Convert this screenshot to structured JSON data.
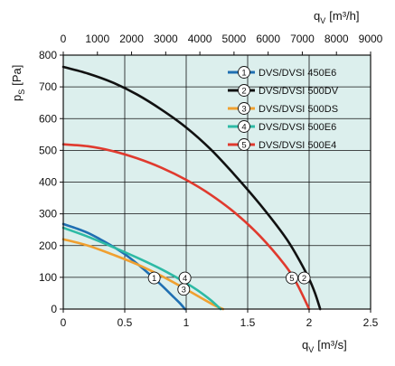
{
  "chart_data": {
    "type": "line",
    "title": "",
    "xlabel": "q",
    "xlabel_sub": "V",
    "xlabel_unit": "[m³/s]",
    "ylabel": "p",
    "ylabel_sub": "S",
    "ylabel_unit": "[Pa]",
    "top_xlabel": "q",
    "top_xlabel_sub": "V",
    "top_xlabel_unit": "[m³/h]",
    "xlim": [
      0,
      2.5
    ],
    "ylim": [
      0,
      800
    ],
    "top_xlim": [
      0,
      9000
    ],
    "x_ticks": [
      "0",
      "0.5",
      "1",
      "1.5",
      "2",
      "2.5"
    ],
    "x_tick_values": [
      0,
      0.5,
      1,
      1.5,
      2,
      2.5
    ],
    "y_ticks": [
      "0",
      "100",
      "200",
      "300",
      "400",
      "500",
      "600",
      "700",
      "800"
    ],
    "y_tick_values": [
      0,
      100,
      200,
      300,
      400,
      500,
      600,
      700,
      800
    ],
    "top_x_ticks": [
      "0",
      "1000",
      "2000",
      "3000",
      "4000",
      "5000",
      "6000",
      "7000",
      "8000",
      "9000"
    ],
    "top_x_tick_values": [
      0,
      1000,
      2000,
      3000,
      4000,
      5000,
      6000,
      7000,
      8000,
      9000
    ],
    "grid": true,
    "plot_background": "#dcefed",
    "grid_color": "#111111",
    "legend_position": "top-right",
    "series": [
      {
        "name": "DVS/DVSI 450E6",
        "number": "1",
        "color": "#1f6fb2",
        "x": [
          0,
          0.1,
          0.2,
          0.3,
          0.4,
          0.5,
          0.6,
          0.7,
          0.8,
          0.9,
          0.95,
          0.99
        ],
        "y": [
          268,
          255,
          240,
          220,
          198,
          173,
          143,
          110,
          75,
          37,
          18,
          0
        ],
        "label_point": [
          0.74,
          98
        ]
      },
      {
        "name": "DVS/DVSI 500DV",
        "number": "2",
        "color": "#111111",
        "x": [
          0,
          0.2,
          0.4,
          0.6,
          0.8,
          1.0,
          1.2,
          1.4,
          1.6,
          1.8,
          1.9,
          2.0,
          2.05,
          2.09
        ],
        "y": [
          763,
          742,
          714,
          676,
          628,
          572,
          503,
          420,
          330,
          230,
          168,
          95,
          48,
          0
        ],
        "label_point": [
          1.96,
          98
        ]
      },
      {
        "name": "DVS/DVSI 500DS",
        "number": "3",
        "color": "#f0a030",
        "x": [
          0,
          0.2,
          0.4,
          0.6,
          0.8,
          1.0,
          1.1,
          1.2,
          1.25,
          1.3
        ],
        "y": [
          220,
          200,
          172,
          141,
          104,
          62,
          40,
          18,
          8,
          0
        ],
        "label_point": [
          0.98,
          62
        ]
      },
      {
        "name": "DVS/DVSI 500E6",
        "number": "4",
        "color": "#2ebaa5",
        "x": [
          0,
          0.2,
          0.4,
          0.6,
          0.8,
          1.0,
          1.1,
          1.2,
          1.28
        ],
        "y": [
          256,
          228,
          196,
          162,
          125,
          82,
          57,
          28,
          0
        ],
        "label_point": [
          0.99,
          98
        ]
      },
      {
        "name": "DVS/DVSI 500E4",
        "number": "5",
        "color": "#e03a2e",
        "x": [
          0,
          0.2,
          0.4,
          0.6,
          0.8,
          1.0,
          1.2,
          1.4,
          1.6,
          1.8,
          1.9,
          2.0
        ],
        "y": [
          519,
          513,
          498,
          475,
          445,
          407,
          360,
          302,
          230,
          140,
          80,
          0
        ],
        "label_point": [
          1.86,
          98
        ]
      }
    ]
  }
}
